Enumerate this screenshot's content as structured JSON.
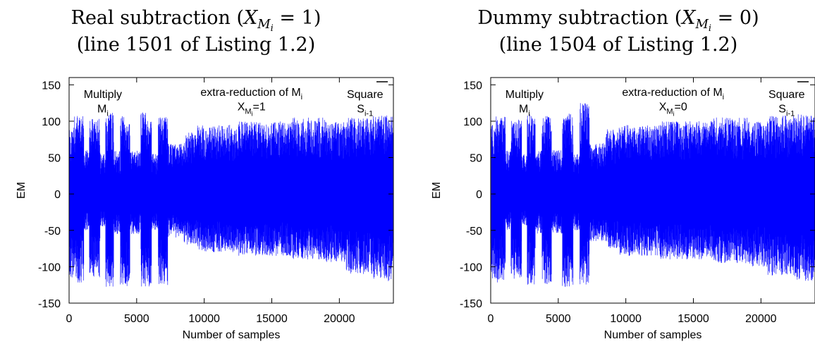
{
  "chart_data": [
    {
      "type": "line",
      "title": {
        "main": "Real subtraction",
        "cond_var": "X",
        "cond_sub": "M",
        "cond_subsub": "i",
        "cond_value": "1",
        "line2": "(line 1501 of Listing 1.2)"
      },
      "xlabel": "Number of samples",
      "ylabel": "EM",
      "xlim": [
        0,
        24000
      ],
      "ylim": [
        -150,
        160
      ],
      "x_ticks": [
        "0",
        "5000",
        "10000",
        "15000",
        "20000"
      ],
      "x_tick_values": [
        0,
        5000,
        10000,
        15000,
        20000
      ],
      "y_ticks": [
        "150",
        "100",
        "50",
        "0",
        "-50",
        "-100",
        "-150"
      ],
      "y_tick_values": [
        150,
        100,
        50,
        0,
        -50,
        -100,
        -150
      ],
      "grid": false,
      "legend": "top-right",
      "series": [
        {
          "color": "#0000ff",
          "n_samples": 24000,
          "envelope_segments": [
            {
              "x0": 0,
              "x1": 400,
              "max": 95,
              "min": -118
            },
            {
              "x0": 400,
              "x1": 1100,
              "max": 108,
              "min": -122
            },
            {
              "x0": 1100,
              "x1": 1500,
              "max": 60,
              "min": -50
            },
            {
              "x0": 1500,
              "x1": 2300,
              "max": 103,
              "min": -115
            },
            {
              "x0": 2300,
              "x1": 2700,
              "max": 55,
              "min": -45
            },
            {
              "x0": 2700,
              "x1": 3300,
              "max": 112,
              "min": -128
            },
            {
              "x0": 3300,
              "x1": 3800,
              "max": 60,
              "min": -55
            },
            {
              "x0": 3800,
              "x1": 4500,
              "max": 110,
              "min": -128
            },
            {
              "x0": 4500,
              "x1": 5300,
              "max": 60,
              "min": -55
            },
            {
              "x0": 5300,
              "x1": 6100,
              "max": 112,
              "min": -128
            },
            {
              "x0": 6100,
              "x1": 6600,
              "max": 55,
              "min": -50
            },
            {
              "x0": 6600,
              "x1": 7300,
              "max": 108,
              "min": -125
            },
            {
              "x0": 7300,
              "x1": 8500,
              "max": 70,
              "min": -60
            },
            {
              "x0": 8500,
              "x1": 9500,
              "max": 85,
              "min": -70
            },
            {
              "x0": 9500,
              "x1": 12500,
              "max": 95,
              "min": -80
            },
            {
              "x0": 12500,
              "x1": 16500,
              "max": 100,
              "min": -85
            },
            {
              "x0": 16500,
              "x1": 19000,
              "max": 105,
              "min": -90
            },
            {
              "x0": 19000,
              "x1": 20500,
              "max": 100,
              "min": -95
            },
            {
              "x0": 20500,
              "x1": 22500,
              "max": 105,
              "min": -110
            },
            {
              "x0": 22500,
              "x1": 24000,
              "max": 108,
              "min": -120
            }
          ]
        }
      ],
      "annotations": [
        {
          "id": "multiply",
          "line1": "Multiply",
          "base": "M",
          "sub": "i",
          "x": 2500,
          "y_line1": 132,
          "y_line2": 112
        },
        {
          "id": "extra",
          "line1_pre": "extra-reduction of M",
          "line1_sub": "i",
          "base": "X",
          "sub": "M",
          "subsub": "i",
          "eq": "=1",
          "x": 13500,
          "y_line1": 135,
          "y_line2": 115
        },
        {
          "id": "square",
          "line1": "Square",
          "base": "S",
          "sub": "i-1",
          "x": 21900,
          "y_line1": 132,
          "y_line2": 112
        }
      ]
    },
    {
      "type": "line",
      "title": {
        "main": "Dummy subtraction",
        "cond_var": "X",
        "cond_sub": "M",
        "cond_subsub": "i",
        "cond_value": "0",
        "line2": "(line 1504 of Listing 1.2)"
      },
      "xlabel": "Number of samples",
      "ylabel": "EM",
      "xlim": [
        0,
        24000
      ],
      "ylim": [
        -150,
        160
      ],
      "x_ticks": [
        "0",
        "5000",
        "10000",
        "15000",
        "20000"
      ],
      "x_tick_values": [
        0,
        5000,
        10000,
        15000,
        20000
      ],
      "y_ticks": [
        "150",
        "100",
        "50",
        "0",
        "-50",
        "-100",
        "-150"
      ],
      "y_tick_values": [
        150,
        100,
        50,
        0,
        -50,
        -100,
        -150
      ],
      "grid": false,
      "legend": "top-right",
      "series": [
        {
          "color": "#0000ff",
          "n_samples": 24000,
          "envelope_segments": [
            {
              "x0": 0,
              "x1": 400,
              "max": 95,
              "min": -118
            },
            {
              "x0": 400,
              "x1": 1100,
              "max": 108,
              "min": -122
            },
            {
              "x0": 1100,
              "x1": 1500,
              "max": 60,
              "min": -50
            },
            {
              "x0": 1500,
              "x1": 2300,
              "max": 103,
              "min": -118
            },
            {
              "x0": 2300,
              "x1": 2700,
              "max": 55,
              "min": -45
            },
            {
              "x0": 2700,
              "x1": 3300,
              "max": 110,
              "min": -125
            },
            {
              "x0": 3300,
              "x1": 3800,
              "max": 60,
              "min": -55
            },
            {
              "x0": 3800,
              "x1": 4500,
              "max": 108,
              "min": -125
            },
            {
              "x0": 4500,
              "x1": 5300,
              "max": 60,
              "min": -55
            },
            {
              "x0": 5300,
              "x1": 6100,
              "max": 112,
              "min": -128
            },
            {
              "x0": 6100,
              "x1": 6600,
              "max": 55,
              "min": -50
            },
            {
              "x0": 6600,
              "x1": 7300,
              "max": 125,
              "min": -125
            },
            {
              "x0": 7300,
              "x1": 8500,
              "max": 70,
              "min": -65
            },
            {
              "x0": 8500,
              "x1": 9500,
              "max": 90,
              "min": -75
            },
            {
              "x0": 9500,
              "x1": 12500,
              "max": 95,
              "min": -85
            },
            {
              "x0": 12500,
              "x1": 16500,
              "max": 100,
              "min": -90
            },
            {
              "x0": 16500,
              "x1": 19000,
              "max": 105,
              "min": -95
            },
            {
              "x0": 19000,
              "x1": 20500,
              "max": 100,
              "min": -100
            },
            {
              "x0": 20500,
              "x1": 22500,
              "max": 108,
              "min": -112
            },
            {
              "x0": 22500,
              "x1": 24000,
              "max": 110,
              "min": -120
            }
          ]
        }
      ],
      "annotations": [
        {
          "id": "multiply",
          "line1": "Multiply",
          "base": "M",
          "sub": "i",
          "x": 2500,
          "y_line1": 132,
          "y_line2": 112
        },
        {
          "id": "extra",
          "line1_pre": "extra-reduction of M",
          "line1_sub": "i",
          "base": "X",
          "sub": "M",
          "subsub": "i",
          "eq": "=0",
          "x": 13500,
          "y_line1": 135,
          "y_line2": 115
        },
        {
          "id": "square",
          "line1": "Square",
          "base": "S",
          "sub": "i-1",
          "x": 21900,
          "y_line1": 132,
          "y_line2": 112
        }
      ]
    }
  ]
}
